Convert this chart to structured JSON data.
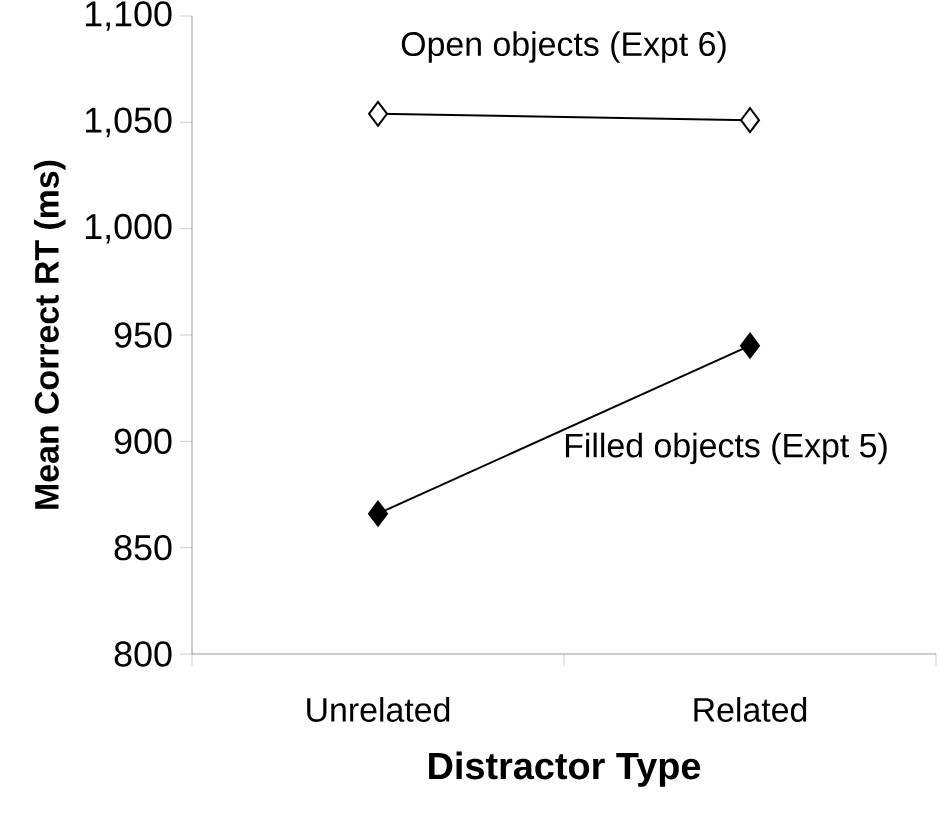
{
  "chart_data": {
    "type": "line",
    "xlabel": "Distractor Type",
    "ylabel": "Mean Correct RT (ms)",
    "categories": [
      "Unrelated",
      "Related"
    ],
    "series": [
      {
        "name": "Open objects (Expt 6)",
        "color": "#000000",
        "colors": [
          "#ffffff",
          "#ffffff"
        ],
        "values": [
          1054,
          1051
        ]
      },
      {
        "name": "Filled objects (Expt 5)",
        "color": "#000000",
        "colors": [
          "#000000",
          "#000000"
        ],
        "values": [
          866,
          945
        ]
      }
    ],
    "ylim": [
      800,
      1100
    ],
    "yticks": [
      800,
      850,
      900,
      950,
      {
        "value": 1000,
        "label": "1,000"
      },
      {
        "value": 1050,
        "label": "1,050"
      },
      {
        "value": 1100,
        "label": "1,100"
      }
    ],
    "grid": false,
    "marker": "diamond",
    "line_style": "solid"
  }
}
